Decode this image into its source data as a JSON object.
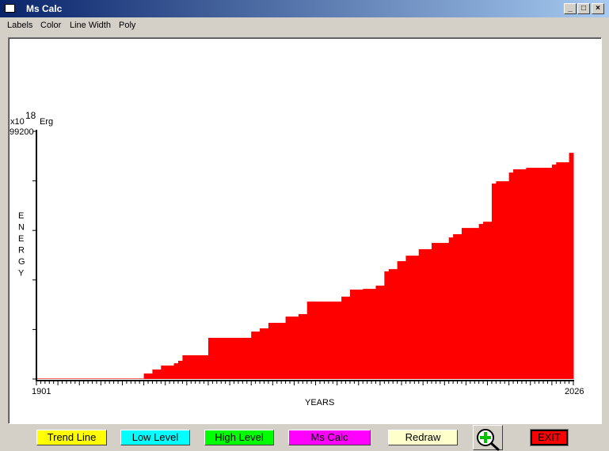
{
  "window": {
    "title": "Ms Calc"
  },
  "menu": [
    "Labels",
    "Color",
    "Line Width",
    "Poly"
  ],
  "buttons": {
    "trend": "Trend Line",
    "low": "Low Level",
    "high": "High Level",
    "mscalc": "Ms Calc",
    "redraw": "Redraw",
    "exit": "EXIT"
  },
  "colors": {
    "fill": "#ff0000",
    "trend": "#ffff00",
    "low": "#00ffff",
    "high": "#00ff00",
    "mscalc": "#ff00ff",
    "redraw": "#ffffcc",
    "exit": "#ff0000"
  },
  "icons": {
    "zoom": "zoom-in-magnifier-icon"
  },
  "chart_data": {
    "type": "area",
    "step": true,
    "unit_prefix": "x10",
    "unit_exp": "18",
    "unit": "Erg",
    "ylabel": "ENERGY",
    "xlabel": "YEARS",
    "xlim": [
      1901,
      2026
    ],
    "ylim": [
      0,
      99200
    ],
    "ytick_label": "99200",
    "x_tick_labels": [
      "1901",
      "2026"
    ],
    "grid": false,
    "x": [
      1901,
      1926,
      1928,
      1930,
      1933,
      1934,
      1935,
      1941,
      1951,
      1953,
      1955,
      1959,
      1962,
      1964,
      1972,
      1974,
      1977,
      1980,
      1982,
      1983,
      1985,
      1987,
      1990,
      1993,
      1997,
      1998,
      2000,
      2004,
      2005,
      2007,
      2008,
      2011,
      2012,
      2015,
      2021,
      2022,
      2025,
      2026
    ],
    "values": [
      200,
      2200,
      3800,
      5400,
      6300,
      7300,
      9500,
      16500,
      19000,
      20300,
      22500,
      25000,
      26000,
      31000,
      33000,
      35800,
      36100,
      37400,
      43100,
      44000,
      47200,
      49400,
      52000,
      54500,
      56700,
      58000,
      60500,
      62100,
      63000,
      78300,
      79200,
      82700,
      84000,
      84600,
      85900,
      86800,
      90600,
      90600
    ]
  }
}
